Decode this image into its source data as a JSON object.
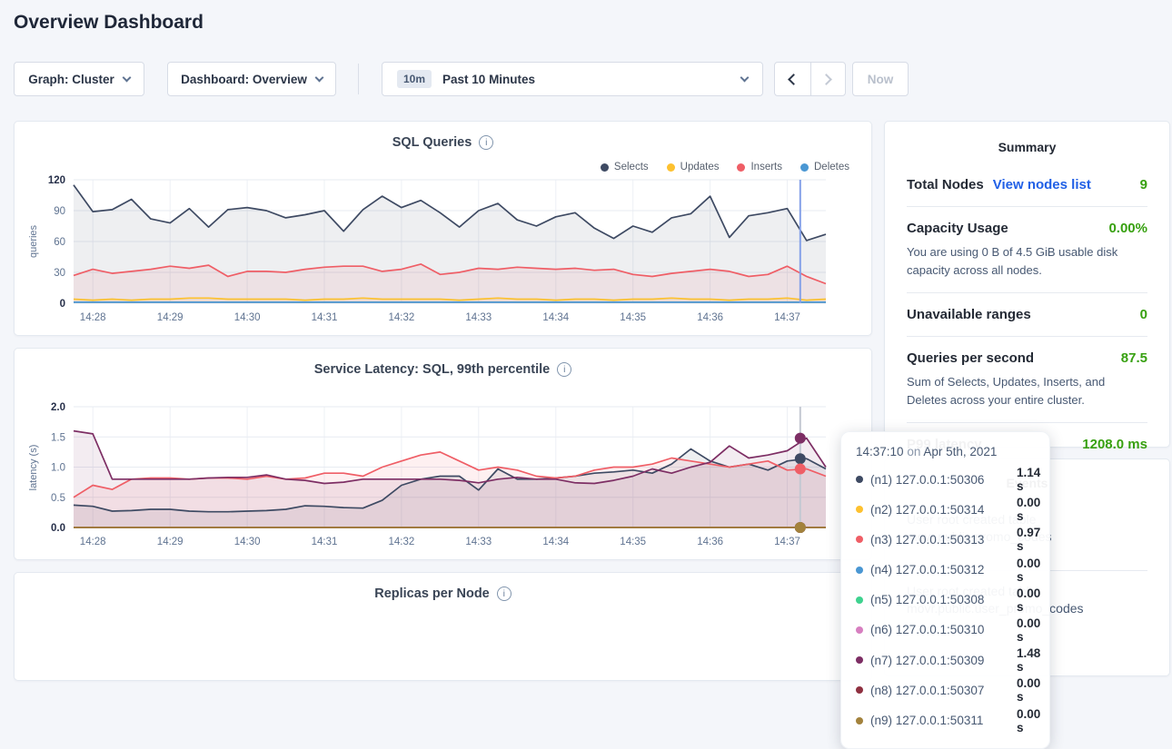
{
  "page": {
    "title": "Overview Dashboard"
  },
  "toolbar": {
    "graph_label": "Graph: Cluster",
    "dashboard_label": "Dashboard: Overview",
    "range_badge": "10m",
    "range_label": "Past 10 Minutes",
    "now_label": "Now"
  },
  "colors": {
    "accent_green": "#37a010",
    "link_blue": "#2160e6",
    "hover_line_blue": "#84a0e8",
    "hover_line_gray": "#c3c8d2"
  },
  "summary": {
    "title": "Summary",
    "rows": [
      {
        "label": "Total Nodes",
        "link": "View nodes list",
        "value": "9",
        "desc": ""
      },
      {
        "label": "Capacity Usage",
        "link": "",
        "value": "0.00%",
        "desc": "You are using 0 B of 4.5 GiB usable disk capacity across all nodes."
      },
      {
        "label": "Unavailable ranges",
        "link": "",
        "value": "0",
        "desc": ""
      },
      {
        "label": "Queries per second",
        "link": "",
        "value": "87.5",
        "desc": "Sum of Selects, Updates, Inserts, and Deletes across your entire cluster."
      },
      {
        "label": "P99 latency",
        "link": "",
        "value": "1208.0 ms",
        "desc": ""
      }
    ]
  },
  "events": {
    "title": "Events",
    "items": [
      {
        "lines": [
          "User root created table",
          "movr.public.promo_codes"
        ]
      },
      {
        "lines": [
          "User root created table",
          "movr.public.user_promo_codes"
        ]
      }
    ]
  },
  "tooltip": {
    "time": "14:37:10",
    "connector": "on",
    "date": "Apr 5th, 2021",
    "rows": [
      {
        "color": "#3e4a63",
        "node": "(n1) 127.0.0.1:50306",
        "value": "1.14 s"
      },
      {
        "color": "#fdc12f",
        "node": "(n2) 127.0.0.1:50314",
        "value": "0.00 s"
      },
      {
        "color": "#ef5e66",
        "node": "(n3) 127.0.0.1:50313",
        "value": "0.97 s"
      },
      {
        "color": "#4a97d3",
        "node": "(n4) 127.0.0.1:50312",
        "value": "0.00 s"
      },
      {
        "color": "#3fd28f",
        "node": "(n5) 127.0.0.1:50308",
        "value": "0.00 s"
      },
      {
        "color": "#d77fc0",
        "node": "(n6) 127.0.0.1:50310",
        "value": "0.00 s"
      },
      {
        "color": "#7d2e64",
        "node": "(n7) 127.0.0.1:50309",
        "value": "1.48 s"
      },
      {
        "color": "#8f3040",
        "node": "(n8) 127.0.0.1:50307",
        "value": "0.00 s"
      },
      {
        "color": "#a3823c",
        "node": "(n9) 127.0.0.1:50311",
        "value": "0.00 s"
      }
    ]
  },
  "chart_data": [
    {
      "type": "area",
      "title": "SQL Queries",
      "ylabel": "queries",
      "ylim": [
        0,
        120
      ],
      "yticks": [
        {
          "v": 0,
          "t": "0"
        },
        {
          "v": 30,
          "t": "30"
        },
        {
          "v": 60,
          "t": "60"
        },
        {
          "v": 90,
          "t": "90"
        },
        {
          "v": 120,
          "t": "120"
        }
      ],
      "xticks": [
        "14:28",
        "14:29",
        "14:30",
        "14:31",
        "14:32",
        "14:33",
        "14:34",
        "14:35",
        "14:36",
        "14:37"
      ],
      "legend": [
        {
          "label": "Selects",
          "color": "#3e4a63"
        },
        {
          "label": "Updates",
          "color": "#fdc12f"
        },
        {
          "label": "Inserts",
          "color": "#ef5e66"
        },
        {
          "label": "Deletes",
          "color": "#4a97d3"
        }
      ],
      "hover": {
        "time": "14:37:10",
        "f": 0.966,
        "color": "#84a0e8",
        "dots": false
      },
      "series": [
        {
          "name": "Deletes",
          "color": "#4a97d3",
          "values": [
            1,
            1,
            1,
            1,
            1,
            1,
            1,
            1,
            1,
            1,
            1,
            1,
            1,
            1,
            1,
            1,
            1,
            1,
            1,
            1,
            1,
            1,
            1,
            1,
            1,
            1,
            1,
            1,
            1,
            1,
            1,
            1,
            1,
            1,
            1,
            1,
            1,
            1,
            1,
            1
          ]
        },
        {
          "name": "Updates",
          "color": "#fdc12f",
          "values": [
            4,
            3,
            4,
            3,
            4,
            4,
            5,
            5,
            4,
            4,
            4,
            4,
            3,
            4,
            4,
            5,
            4,
            4,
            4,
            4,
            3,
            4,
            5,
            4,
            4,
            3,
            4,
            4,
            3,
            4,
            4,
            5,
            4,
            4,
            3,
            4,
            4,
            5,
            3,
            4
          ]
        },
        {
          "name": "Inserts",
          "color": "#ef5e66",
          "values": [
            27,
            33,
            29,
            31,
            33,
            36,
            34,
            37,
            26,
            31,
            31,
            30,
            33,
            35,
            36,
            36,
            31,
            33,
            38,
            28,
            30,
            34,
            33,
            35,
            34,
            33,
            34,
            32,
            33,
            28,
            26,
            29,
            31,
            33,
            31,
            26,
            28,
            36,
            26,
            19
          ]
        },
        {
          "name": "Selects",
          "color": "#3e4a63",
          "values": [
            115,
            89,
            91,
            101,
            82,
            78,
            92,
            74,
            91,
            93,
            90,
            83,
            86,
            90,
            70,
            91,
            104,
            93,
            100,
            88,
            74,
            90,
            97,
            81,
            75,
            84,
            88,
            73,
            63,
            75,
            69,
            83,
            87,
            104,
            64,
            85,
            88,
            92,
            61,
            67
          ]
        }
      ]
    },
    {
      "type": "area",
      "title": "Service Latency: SQL, 99th percentile",
      "ylabel": "latency (s)",
      "ylim": [
        0,
        2
      ],
      "yticks": [
        {
          "v": 0,
          "t": "0.0"
        },
        {
          "v": 0.5,
          "t": "0.5"
        },
        {
          "v": 1,
          "t": "1.0"
        },
        {
          "v": 1.5,
          "t": "1.5"
        },
        {
          "v": 2,
          "t": "2.0"
        }
      ],
      "xticks": [
        "14:28",
        "14:29",
        "14:30",
        "14:31",
        "14:32",
        "14:33",
        "14:34",
        "14:35",
        "14:36",
        "14:37"
      ],
      "legend": [],
      "hover": {
        "time": "14:37:10",
        "f": 0.966,
        "color": "#c3c8d2",
        "dots": true
      },
      "series": [
        {
          "name": "(n1) 127.0.0.1:50306",
          "color": "#3e4a63",
          "values": [
            0.37,
            0.35,
            0.27,
            0.28,
            0.3,
            0.3,
            0.27,
            0.26,
            0.26,
            0.27,
            0.28,
            0.3,
            0.36,
            0.35,
            0.33,
            0.32,
            0.45,
            0.7,
            0.8,
            0.85,
            0.85,
            0.62,
            0.97,
            0.8,
            0.8,
            0.82,
            0.85,
            0.9,
            0.92,
            0.95,
            0.9,
            1.05,
            1.3,
            1.1,
            1.0,
            1.05,
            0.95,
            1.1,
            1.14,
            0.97
          ]
        },
        {
          "name": "(n2) 127.0.0.1:50314",
          "color": "#fdc12f",
          "values_const": 0
        },
        {
          "name": "(n3) 127.0.0.1:50313",
          "color": "#ef5e66",
          "values": [
            0.5,
            0.7,
            0.63,
            0.8,
            0.82,
            0.82,
            0.8,
            0.82,
            0.82,
            0.8,
            0.85,
            0.8,
            0.82,
            0.9,
            0.9,
            0.85,
            1.0,
            1.1,
            1.2,
            1.25,
            1.1,
            0.95,
            1.0,
            0.95,
            0.85,
            0.82,
            0.85,
            0.95,
            1.0,
            1.0,
            1.05,
            1.15,
            1.1,
            1.05,
            1.0,
            1.05,
            1.1,
            0.95,
            0.97,
            0.85
          ]
        },
        {
          "name": "(n4) 127.0.0.1:50312",
          "color": "#4a97d3",
          "values_const": 0
        },
        {
          "name": "(n5) 127.0.0.1:50308",
          "color": "#3fd28f",
          "values_const": 0
        },
        {
          "name": "(n6) 127.0.0.1:50310",
          "color": "#d77fc0",
          "values_const": 0
        },
        {
          "name": "(n7) 127.0.0.1:50309",
          "color": "#7d2e64",
          "values": [
            1.6,
            1.55,
            0.8,
            0.8,
            0.8,
            0.8,
            0.8,
            0.82,
            0.83,
            0.83,
            0.87,
            0.8,
            0.78,
            0.73,
            0.75,
            0.8,
            0.8,
            0.8,
            0.8,
            0.8,
            0.78,
            0.74,
            0.8,
            0.83,
            0.8,
            0.8,
            0.74,
            0.73,
            0.78,
            0.85,
            0.97,
            0.9,
            1.0,
            1.08,
            1.35,
            1.15,
            1.2,
            1.27,
            1.48,
            1.0
          ]
        },
        {
          "name": "(n8) 127.0.0.1:50307",
          "color": "#8f3040",
          "values_const": 0
        },
        {
          "name": "(n9) 127.0.0.1:50311",
          "color": "#a3823c",
          "values_const": 0
        }
      ]
    },
    {
      "type": "area",
      "title": "Replicas per Node"
    }
  ]
}
